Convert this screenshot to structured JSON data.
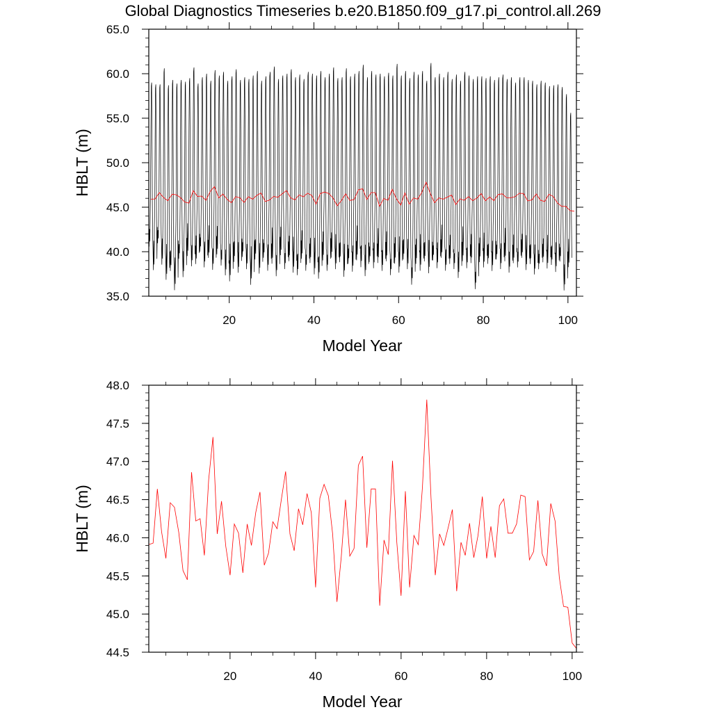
{
  "figure": {
    "title": "Global Diagnostics Timeseries b.e20.B1850.f09_g17.pi_control.all.269"
  },
  "colors": {
    "monthly": "#000000",
    "annual": "#ff0000"
  },
  "chart_data": [
    {
      "type": "line",
      "xlabel": "Model Year",
      "ylabel": "HBLT (m)",
      "xlim": [
        1,
        102
      ],
      "ylim": [
        35.0,
        65.0
      ],
      "xticks": [
        20,
        40,
        60,
        80,
        100
      ],
      "yticks": [
        "35.0",
        "40.0",
        "45.0",
        "50.0",
        "55.0",
        "60.0",
        "65.0"
      ],
      "grid": false,
      "series": [
        {
          "color": "#000000",
          "style": "monthly (12 samples per year, seasonal cycle)",
          "annual_max": [
            59.0,
            58.8,
            58.8,
            60.6,
            58.7,
            59.3,
            58.9,
            59.3,
            59.1,
            59.5,
            60.7,
            58.9,
            59.6,
            60.0,
            59.2,
            60.4,
            59.8,
            60.2,
            59.2,
            59.7,
            60.5,
            59.3,
            59.6,
            59.4,
            59.8,
            60.3,
            59.2,
            59.7,
            60.2,
            60.8,
            59.4,
            59.8,
            60.0,
            60.5,
            59.6,
            59.9,
            59.4,
            60.2,
            60.0,
            59.8,
            60.3,
            59.6,
            60.0,
            60.7,
            59.5,
            59.6,
            60.6,
            59.7,
            60.0,
            60.3,
            61.0,
            59.6,
            60.3,
            59.9,
            60.0,
            59.7,
            60.1,
            59.8,
            61.1,
            59.8,
            60.3,
            59.5,
            60.2,
            59.9,
            60.3,
            59.2,
            61.2,
            59.6,
            60.0,
            59.6,
            60.2,
            59.4,
            59.9,
            59.2,
            60.2,
            59.8,
            59.4,
            59.7,
            59.7,
            59.5,
            59.7,
            59.3,
            59.6,
            59.9,
            59.4,
            59.6,
            59.0,
            59.6,
            59.6,
            59.3,
            59.2,
            58.8,
            59.2,
            59.0,
            58.6,
            58.7,
            58.8,
            58.5,
            57.7,
            55.6
          ],
          "annual_min": [
            40.2,
            37.5,
            40.6,
            38.1,
            36.4,
            37.4,
            35.2,
            38.8,
            36.7,
            39.1,
            37.9,
            38.2,
            39.6,
            37.8,
            38.9,
            37.5,
            39.3,
            38.0,
            36.9,
            36.2,
            38.4,
            37.2,
            39.0,
            37.6,
            35.8,
            38.7,
            37.1,
            38.9,
            37.4,
            38.2,
            36.8,
            39.2,
            37.6,
            38.5,
            37.2,
            36.9,
            38.8,
            37.4,
            38.3,
            37.0,
            36.5,
            38.6,
            37.4,
            38.9,
            37.6,
            38.4,
            36.7,
            38.2,
            37.3,
            38.6,
            37.8,
            36.8,
            38.4,
            37.7,
            38.3,
            37.4,
            38.5,
            36.9,
            38.2,
            37.2,
            38.7,
            37.6,
            35.8,
            38.2,
            37.4,
            38.5,
            37.1,
            38.6,
            37.7,
            38.9,
            37.4,
            38.2,
            37.6,
            36.6,
            38.5,
            37.7,
            38.3,
            35.3,
            38.4,
            37.8,
            38.2,
            37.4,
            38.7,
            37.6,
            38.5,
            37.2,
            38.3,
            37.8,
            38.9,
            37.5,
            38.2,
            37.0,
            37.6,
            38.4,
            37.7,
            38.1,
            37.3,
            38.5,
            35.2,
            37.9
          ]
        },
        {
          "color": "#ff0000",
          "style": "annual mean",
          "ref": "annual_means"
        }
      ]
    },
    {
      "type": "line",
      "xlabel": "Model Year",
      "ylabel": "HBLT (m)",
      "xlim": [
        1,
        101
      ],
      "ylim": [
        44.5,
        48.0
      ],
      "xticks": [
        20,
        40,
        60,
        80,
        100
      ],
      "yticks": [
        "44.5",
        "45.0",
        "45.5",
        "46.0",
        "46.5",
        "47.0",
        "47.5",
        "48.0"
      ],
      "grid": false,
      "series": [
        {
          "color": "#ff0000",
          "style": "annual mean",
          "ref": "annual_means"
        }
      ]
    }
  ],
  "annual_means": {
    "x": [
      1,
      2,
      3,
      4,
      5,
      6,
      7,
      8,
      9,
      10,
      11,
      12,
      13,
      14,
      15,
      16,
      17,
      18,
      19,
      20,
      21,
      22,
      23,
      24,
      25,
      26,
      27,
      28,
      29,
      30,
      31,
      32,
      33,
      34,
      35,
      36,
      37,
      38,
      39,
      40,
      41,
      42,
      43,
      44,
      45,
      46,
      47,
      48,
      49,
      50,
      51,
      52,
      53,
      54,
      55,
      56,
      57,
      58,
      59,
      60,
      61,
      62,
      63,
      64,
      65,
      66,
      67,
      68,
      69,
      70,
      71,
      72,
      73,
      74,
      75,
      76,
      77,
      78,
      79,
      80,
      81,
      82,
      83,
      84,
      85,
      86,
      87,
      88,
      89,
      90,
      91,
      92,
      93,
      94,
      95,
      96,
      97,
      98,
      99,
      100,
      101
    ],
    "y": [
      45.91,
      45.93,
      46.64,
      46.08,
      45.73,
      46.46,
      46.4,
      46.07,
      45.57,
      45.45,
      46.86,
      46.22,
      46.25,
      45.77,
      46.76,
      47.32,
      46.05,
      46.48,
      45.89,
      45.51,
      46.18,
      46.06,
      45.54,
      46.18,
      45.9,
      46.33,
      46.6,
      45.64,
      45.8,
      46.21,
      46.12,
      46.5,
      46.87,
      46.05,
      45.83,
      46.38,
      46.17,
      46.58,
      46.33,
      45.35,
      46.52,
      46.7,
      46.55,
      46.05,
      45.16,
      45.75,
      46.5,
      45.76,
      45.86,
      46.95,
      47.07,
      45.87,
      46.64,
      46.64,
      45.11,
      45.97,
      45.78,
      47.01,
      45.94,
      45.24,
      46.61,
      45.35,
      46.03,
      45.91,
      46.67,
      47.81,
      46.52,
      45.51,
      46.05,
      45.9,
      46.13,
      46.37,
      45.3,
      45.94,
      45.77,
      46.19,
      45.74,
      46.03,
      46.54,
      45.73,
      46.15,
      45.74,
      46.42,
      46.51,
      46.06,
      46.06,
      46.18,
      46.56,
      46.54,
      45.71,
      45.82,
      46.49,
      45.79,
      45.63,
      46.45,
      46.22,
      45.48,
      45.1,
      45.09,
      44.62,
      44.55
    ]
  }
}
